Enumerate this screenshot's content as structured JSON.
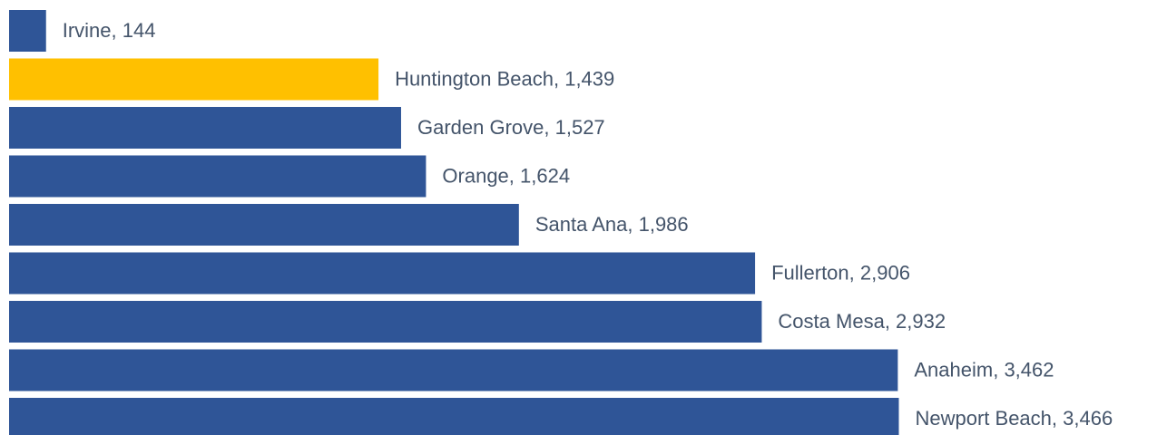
{
  "chart_data": {
    "type": "bar",
    "orientation": "horizontal",
    "categories": [
      "Irvine",
      "Huntington Beach",
      "Garden Grove",
      "Orange",
      "Santa Ana",
      "Fullerton",
      "Costa Mesa",
      "Anaheim",
      "Newport Beach"
    ],
    "values": [
      144,
      1439,
      1527,
      1624,
      1986,
      2906,
      2932,
      3462,
      3466
    ],
    "value_labels": [
      "144",
      "1,439",
      "1,527",
      "1,624",
      "1,986",
      "2,906",
      "2,932",
      "3,462",
      "3,466"
    ],
    "label_separator": ", ",
    "colors": [
      "#2f5597",
      "#ffc000",
      "#2f5597",
      "#2f5597",
      "#2f5597",
      "#2f5597",
      "#2f5597",
      "#2f5597",
      "#2f5597"
    ],
    "xlim": [
      0,
      4500
    ]
  }
}
